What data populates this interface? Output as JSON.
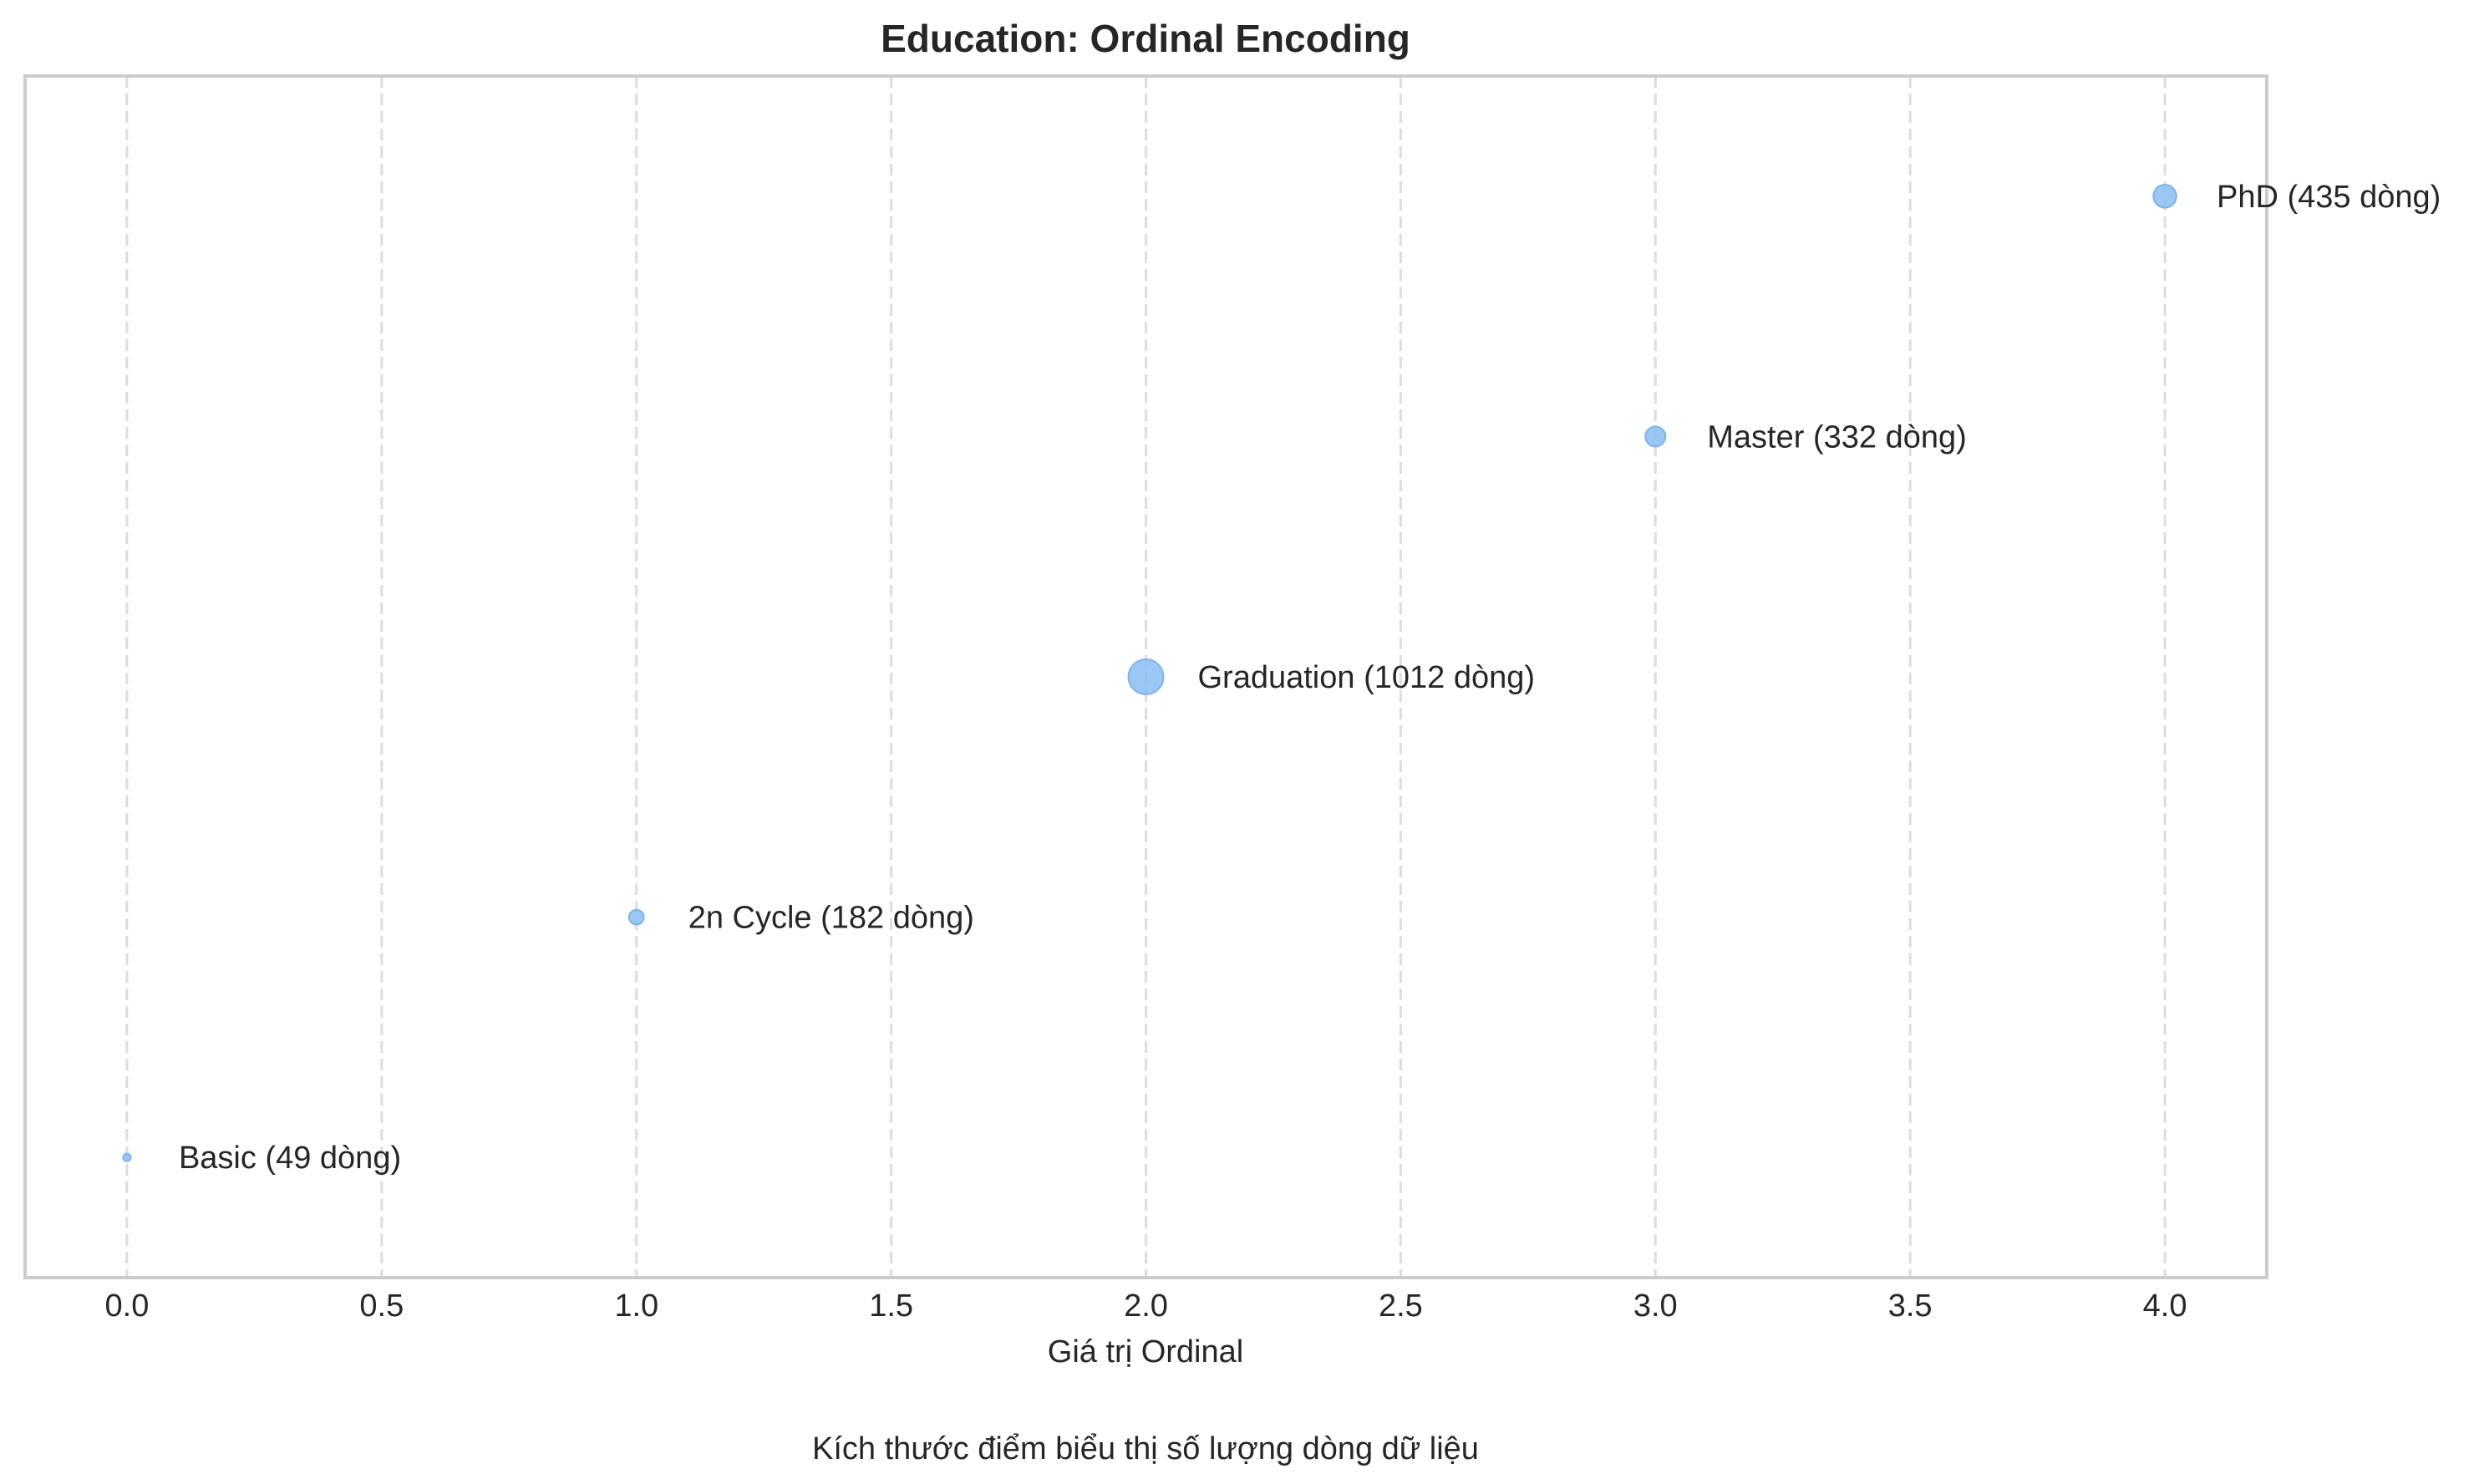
{
  "chart_data": {
    "type": "scatter",
    "title": "Education: Ordinal Encoding",
    "xlabel": "Giá trị Ordinal",
    "ylabel": "",
    "xlim": [
      -0.2,
      4.2
    ],
    "ylim": [
      -0.5,
      4.5
    ],
    "grid": "vertical-dashed",
    "x_ticks": [
      0.0,
      0.5,
      1.0,
      1.5,
      2.0,
      2.5,
      3.0,
      3.5,
      4.0
    ],
    "x_tick_labels": [
      "0.0",
      "0.5",
      "1.0",
      "1.5",
      "2.0",
      "2.5",
      "3.0",
      "3.5",
      "4.0"
    ],
    "points": [
      {
        "category": "Basic",
        "x": 0,
        "y": 0,
        "count": 49,
        "label": "Basic (49 dòng)"
      },
      {
        "category": "2n Cycle",
        "x": 1,
        "y": 1,
        "count": 182,
        "label": "2n Cycle (182 dòng)"
      },
      {
        "category": "Graduation",
        "x": 2,
        "y": 2,
        "count": 1012,
        "label": "Graduation (1012 dòng)"
      },
      {
        "category": "Master",
        "x": 3,
        "y": 3,
        "count": 332,
        "label": "Master (332 dòng)"
      },
      {
        "category": "PhD",
        "x": 4,
        "y": 4,
        "count": 435,
        "label": "PhD (435 dòng)"
      }
    ],
    "point_color": "#88bdf2",
    "footnote": "Kích thước điểm biểu thị số lượng dòng dữ liệu"
  }
}
